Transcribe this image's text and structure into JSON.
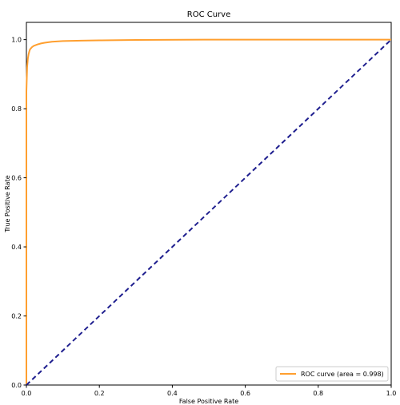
{
  "chart_data": {
    "type": "line",
    "title": "ROC Curve",
    "xlabel": "False Positive Rate",
    "ylabel": "True Positive Rate",
    "xlim": [
      0.0,
      1.0
    ],
    "ylim": [
      0.0,
      1.05
    ],
    "xticks": [
      "0.0",
      "0.2",
      "0.4",
      "0.6",
      "0.8",
      "1.0"
    ],
    "yticks": [
      "0.0",
      "0.2",
      "0.4",
      "0.6",
      "0.8",
      "1.0"
    ],
    "grid": false,
    "legend_position": "lower-right",
    "series": [
      {
        "name": "ROC curve (area = 0.998)",
        "color": "#ff9f2f",
        "style": "solid",
        "x": [
          0.0,
          0.0,
          0.002,
          0.004,
          0.006,
          0.008,
          0.01,
          0.015,
          0.02,
          0.03,
          0.04,
          0.05,
          0.07,
          0.1,
          0.15,
          0.2,
          0.3,
          0.5,
          0.7,
          1.0
        ],
        "y": [
          0.0,
          0.85,
          0.92,
          0.945,
          0.958,
          0.966,
          0.972,
          0.978,
          0.982,
          0.986,
          0.989,
          0.991,
          0.994,
          0.996,
          0.997,
          0.998,
          0.999,
          1.0,
          1.0,
          1.0
        ]
      },
      {
        "color": "#1f1f8f",
        "style": "dashed",
        "x": [
          0.0,
          1.0
        ],
        "y": [
          0.0,
          1.0
        ]
      }
    ]
  }
}
